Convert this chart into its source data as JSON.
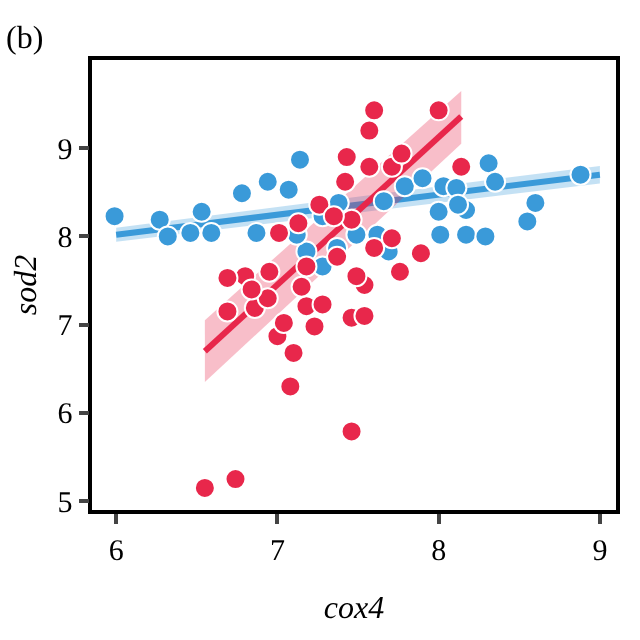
{
  "chart_data": {
    "type": "scatter",
    "xlabel": "cox4",
    "ylabel": "sod2",
    "annotations": [
      "(b)"
    ],
    "xlim": [
      5.85,
      9.1
    ],
    "ylim": [
      4.9,
      10
    ],
    "xticks": [
      6,
      7,
      8,
      9
    ],
    "yticks": [
      5,
      6,
      7,
      8,
      9
    ],
    "grid": false,
    "marker": "circle",
    "series": [
      {
        "type": "line",
        "marker": "none",
        "color": "#3a9ad9",
        "x": [
          6.0,
          9.0
        ],
        "values": [
          8.02,
          8.7
        ],
        "lower": [
          7.94,
          8.6
        ],
        "upper": [
          8.1,
          8.8
        ]
      },
      {
        "type": "line",
        "marker": "none",
        "color": "#e8274b",
        "x": [
          6.55,
          8.14
        ],
        "values": [
          6.7,
          9.36
        ],
        "lower": [
          6.35,
          9.05
        ],
        "upper": [
          7.05,
          9.65
        ]
      },
      {
        "color": "#3a9ad9",
        "x": [
          5.99,
          6.27,
          6.32,
          6.46,
          6.53,
          6.59,
          6.87,
          6.78,
          6.94,
          7.07,
          7.14,
          7.18,
          7.12,
          7.28,
          7.38,
          7.49,
          7.62,
          7.66,
          7.79,
          7.9,
          8.03,
          8.11,
          8.31,
          8.35,
          8.17,
          8.0,
          8.01,
          8.17,
          8.29,
          8.6,
          8.55,
          8.88,
          7.28,
          7.37,
          7.69,
          8.12
        ],
        "values": [
          8.23,
          8.19,
          8.0,
          8.04,
          8.28,
          8.04,
          8.04,
          8.49,
          8.62,
          8.53,
          8.87,
          7.83,
          8.02,
          8.23,
          8.38,
          8.02,
          8.02,
          8.4,
          8.57,
          8.66,
          8.57,
          8.55,
          8.83,
          8.62,
          8.3,
          8.28,
          8.02,
          8.02,
          8.0,
          8.38,
          8.17,
          8.7,
          7.66,
          7.87,
          7.83,
          8.36
        ]
      },
      {
        "color": "#e8274b",
        "x": [
          6.55,
          6.74,
          7.46,
          7.08,
          7.1,
          7.0,
          7.04,
          7.23,
          7.18,
          7.46,
          6.69,
          6.86,
          7.6,
          8.0,
          7.57,
          7.57,
          7.71,
          7.77,
          7.43,
          7.42,
          7.26,
          7.01,
          7.13,
          7.46,
          8.14,
          7.15,
          7.37,
          7.54,
          7.71,
          7.76,
          7.18,
          6.8,
          6.94,
          7.28,
          6.69,
          6.84,
          7.54,
          6.95,
          7.49,
          7.35,
          7.89,
          7.6
        ],
        "values": [
          5.15,
          5.25,
          5.79,
          6.3,
          6.68,
          6.87,
          7.02,
          6.98,
          7.21,
          7.08,
          7.15,
          7.19,
          9.43,
          9.43,
          9.2,
          8.79,
          8.79,
          8.94,
          8.9,
          8.62,
          8.36,
          8.04,
          8.15,
          8.19,
          8.79,
          7.43,
          7.77,
          7.45,
          7.98,
          7.6,
          7.66,
          7.55,
          7.3,
          7.23,
          7.53,
          7.4,
          7.1,
          7.6,
          7.55,
          8.23,
          7.81,
          7.87
        ]
      }
    ]
  }
}
